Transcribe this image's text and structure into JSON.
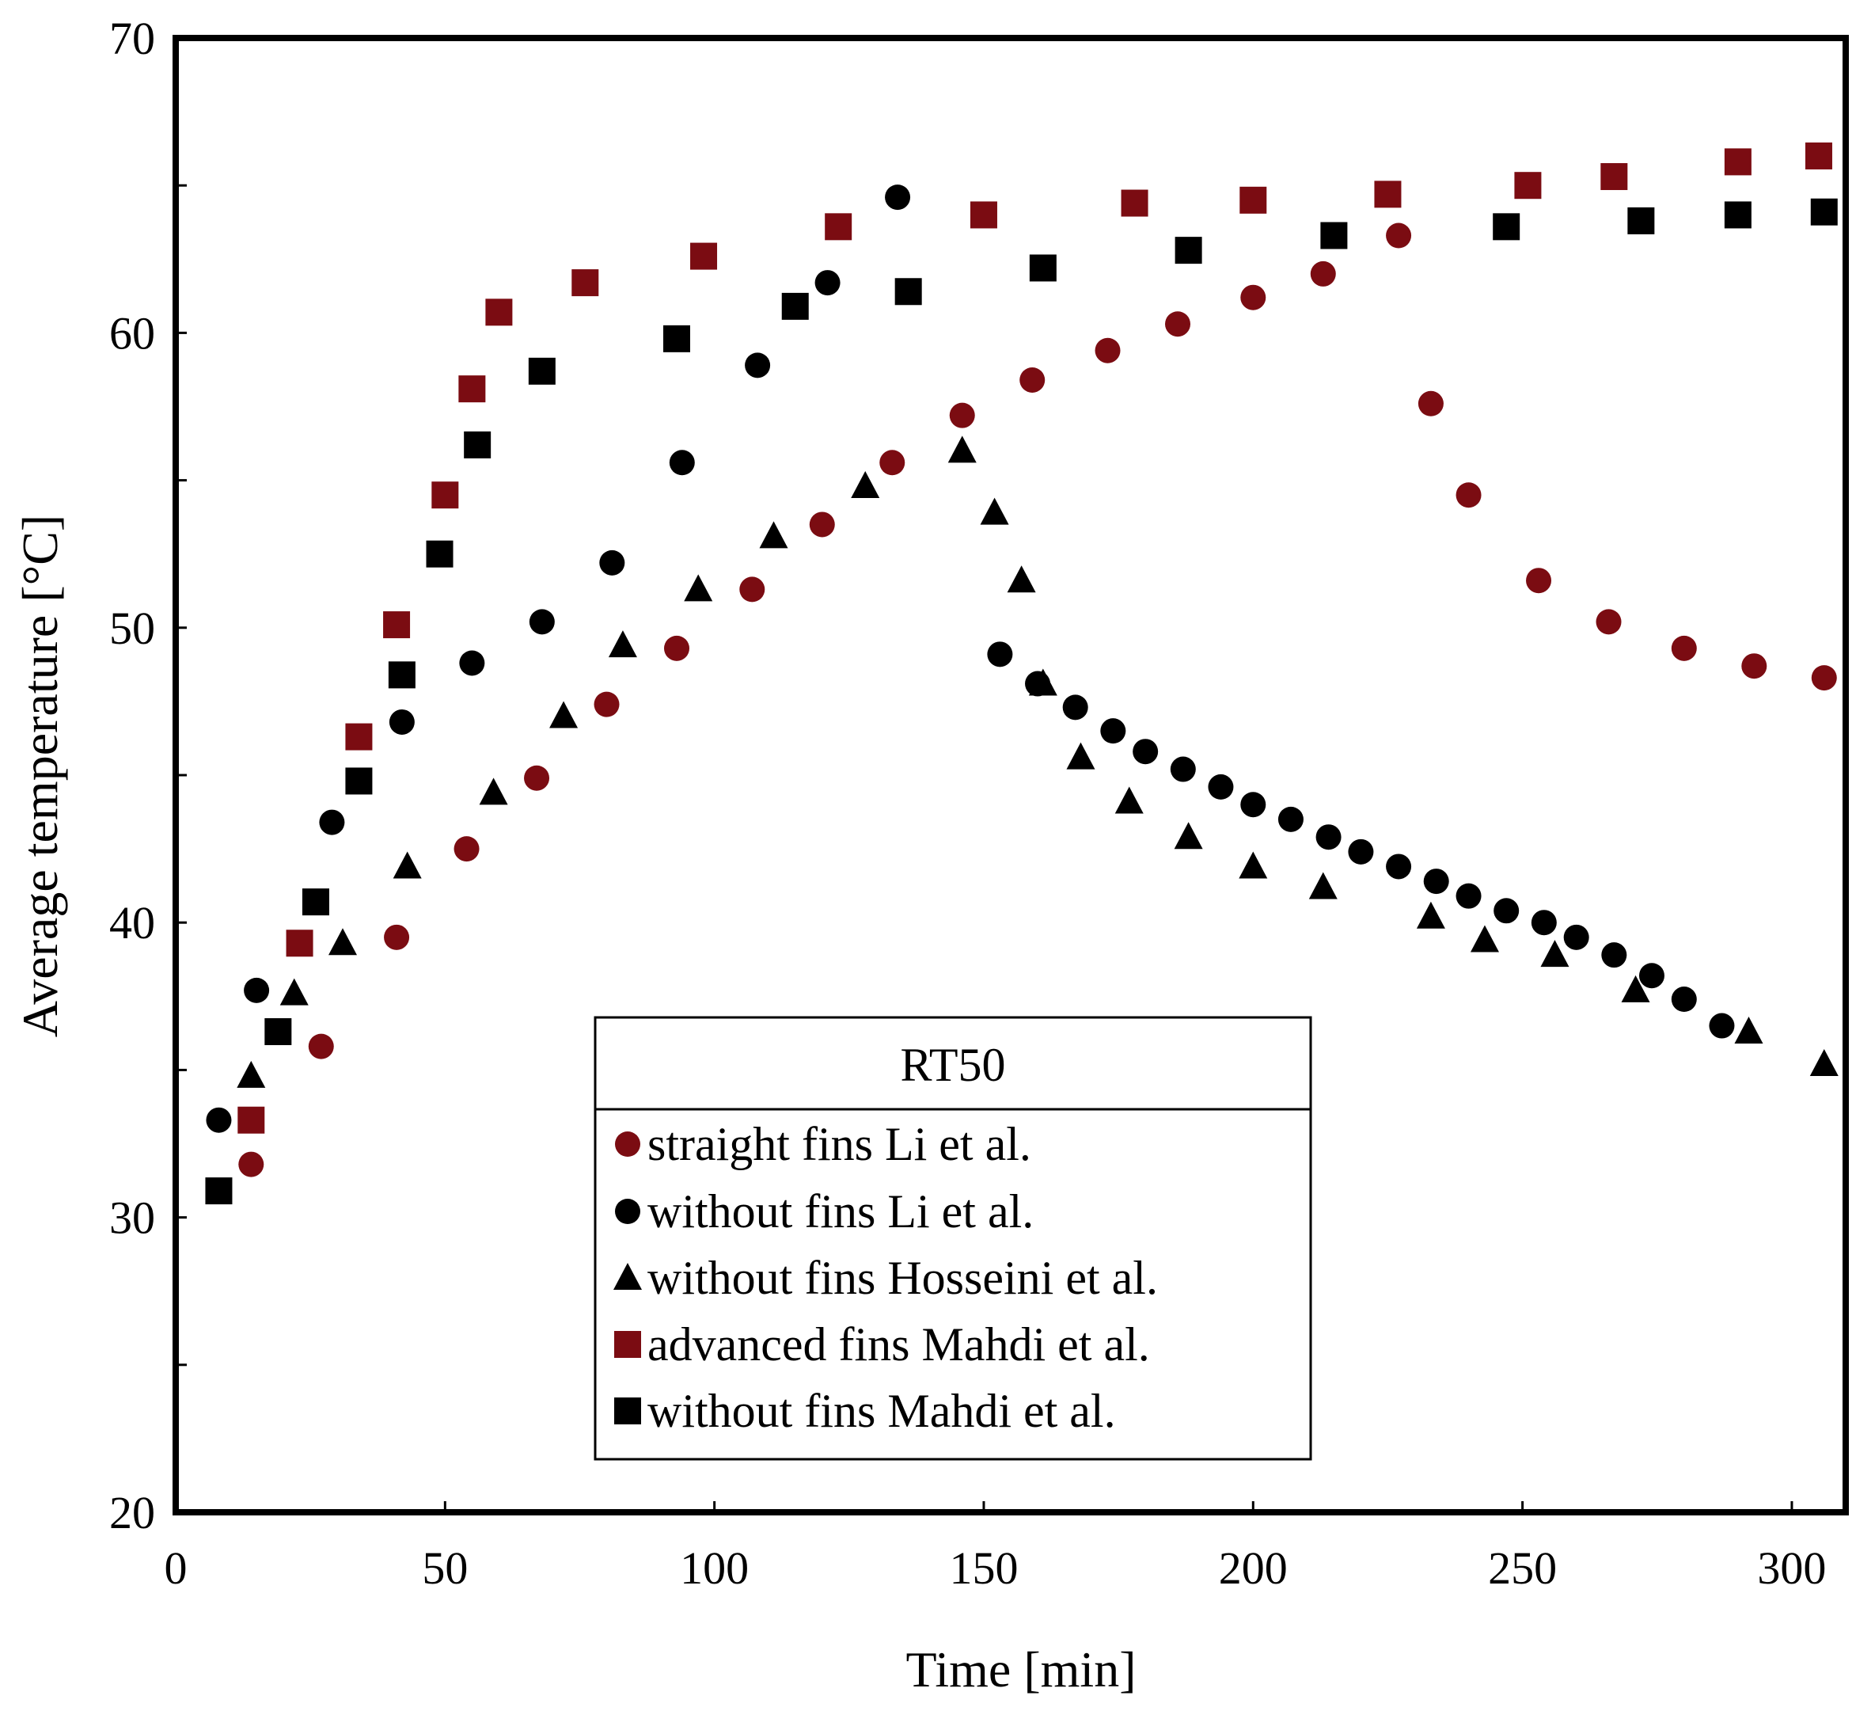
{
  "chart_data": {
    "type": "scatter",
    "title": "",
    "xlabel": "Time [min]",
    "ylabel": "Average temperature [°C]",
    "xlim": [
      0,
      310
    ],
    "ylim": [
      20,
      70
    ],
    "xticks": [
      0,
      50,
      100,
      150,
      200,
      250,
      300
    ],
    "yticks": [
      20,
      30,
      40,
      50,
      60,
      70
    ],
    "y_minor_ticks": [
      25,
      35,
      45,
      55,
      65
    ],
    "grid": false,
    "legend_title": "RT50",
    "legend_position": "bottom-center",
    "colors": {
      "darkred": "#7b0c12",
      "black": "#000000"
    },
    "series": [
      {
        "name": "straight fins Li et al.",
        "marker": "circle",
        "color": "#7b0c12",
        "x": [
          14,
          27,
          41,
          54,
          67,
          80,
          93,
          107,
          120,
          133,
          146,
          159,
          173,
          186,
          200,
          213,
          227,
          233,
          240,
          253,
          266,
          280,
          293,
          306
        ],
        "y": [
          31.8,
          35.8,
          39.5,
          42.5,
          44.9,
          47.4,
          49.3,
          51.3,
          53.5,
          55.6,
          57.2,
          58.4,
          59.4,
          60.3,
          61.2,
          62.0,
          63.3,
          57.6,
          54.5,
          51.6,
          50.2,
          49.3,
          48.7,
          48.3
        ]
      },
      {
        "name": "without fins Li et al.",
        "marker": "circle",
        "color": "#000000",
        "x": [
          8,
          15,
          29,
          42,
          55,
          68,
          81,
          94,
          108,
          121,
          134,
          153,
          160,
          167,
          174,
          180,
          187,
          194,
          200,
          207,
          214,
          220,
          227,
          234,
          240,
          247,
          254,
          260,
          267,
          274,
          280,
          287
        ],
        "y": [
          33.3,
          37.7,
          43.4,
          46.8,
          48.8,
          50.2,
          52.2,
          55.6,
          58.9,
          61.7,
          64.6,
          49.1,
          48.1,
          47.3,
          46.5,
          45.8,
          45.2,
          44.6,
          44.0,
          43.5,
          42.9,
          42.4,
          41.9,
          41.4,
          40.9,
          40.4,
          40.0,
          39.5,
          38.9,
          38.2,
          37.4,
          36.5
        ]
      },
      {
        "name": "without fins Hosseini et al.",
        "marker": "triangle",
        "color": "#000000",
        "x": [
          14,
          22,
          31,
          43,
          59,
          72,
          83,
          97,
          111,
          128,
          146,
          152,
          157,
          161,
          168,
          177,
          188,
          200,
          213,
          233,
          243,
          256,
          271,
          292,
          306
        ],
        "y": [
          34.8,
          37.6,
          39.3,
          41.9,
          44.4,
          47.0,
          49.4,
          51.3,
          53.1,
          54.8,
          56.0,
          53.9,
          51.6,
          48.1,
          45.6,
          44.1,
          42.9,
          41.9,
          41.2,
          40.2,
          39.4,
          38.9,
          37.7,
          36.3,
          35.2
        ]
      },
      {
        "name": "advanced fins Mahdi et al.",
        "marker": "square",
        "color": "#7b0c12",
        "x": [
          14,
          23,
          34,
          41,
          50,
          55,
          60,
          76,
          98,
          123,
          150,
          178,
          200,
          225,
          251,
          267,
          290,
          305
        ],
        "y": [
          33.3,
          39.3,
          46.3,
          50.1,
          54.5,
          58.1,
          60.7,
          61.7,
          62.6,
          63.6,
          64.0,
          64.4,
          64.5,
          64.7,
          65.0,
          65.3,
          65.8,
          66.0
        ]
      },
      {
        "name": "without fins Mahdi et al.",
        "marker": "square",
        "color": "#000000",
        "x": [
          8,
          19,
          26,
          34,
          42,
          49,
          56,
          68,
          93,
          115,
          136,
          161,
          188,
          215,
          247,
          272,
          290,
          306
        ],
        "y": [
          30.9,
          36.3,
          40.7,
          44.8,
          48.4,
          52.5,
          56.2,
          58.7,
          59.8,
          60.9,
          61.4,
          62.2,
          62.8,
          63.3,
          63.6,
          63.8,
          64.0,
          64.1
        ]
      }
    ]
  }
}
